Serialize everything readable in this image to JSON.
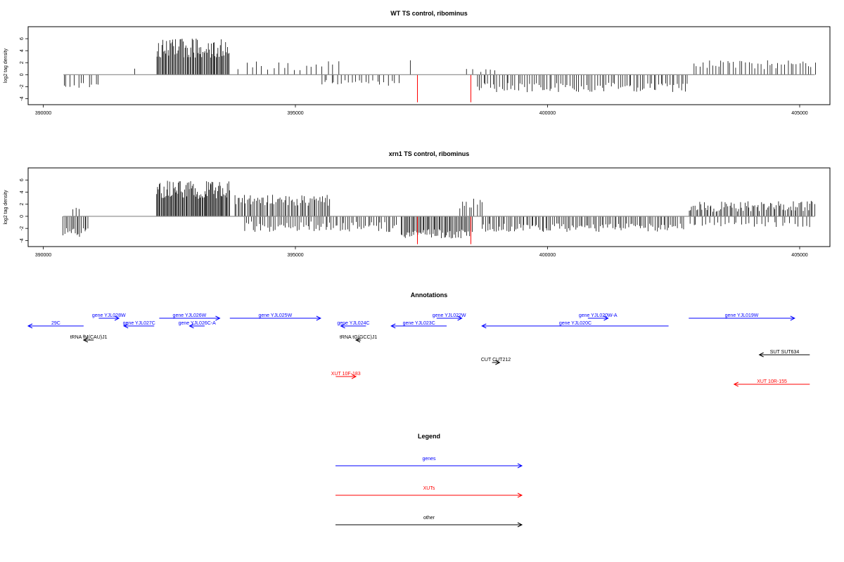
{
  "chart_data": [
    {
      "type": "bar",
      "title": "WT TS control, ribominus",
      "ylabel": "log2 tag density",
      "xlabel": "",
      "xlim": [
        389700,
        405600
      ],
      "ylim": [
        -5,
        8
      ],
      "xticks": [
        390000,
        395000,
        400000,
        405000
      ],
      "yticks": [
        -4,
        -2,
        0,
        2,
        4,
        6
      ],
      "baseline_range": [
        390400,
        405300
      ],
      "pos_regions": [
        {
          "start": 391800,
          "end": 391800,
          "step": 100,
          "base": 1.0,
          "amp": 0,
          "seed": 1
        },
        {
          "start": 392250,
          "end": 393700,
          "step": 20,
          "base": 3.8,
          "amp": 3.2,
          "seed": 2
        },
        {
          "start": 393900,
          "end": 395900,
          "step": 110,
          "base": 1.2,
          "amp": 1.5,
          "seed": 3
        },
        {
          "start": 397300,
          "end": 397300,
          "step": 100,
          "base": 2.4,
          "amp": 0,
          "seed": 4
        },
        {
          "start": 398400,
          "end": 399100,
          "step": 120,
          "base": 0.6,
          "amp": 0.6,
          "seed": 5
        },
        {
          "start": 402900,
          "end": 405300,
          "step": 60,
          "base": 1.4,
          "amp": 1.6,
          "seed": 6
        }
      ],
      "neg_regions": [
        {
          "start": 390400,
          "end": 391100,
          "step": 70,
          "base": -1.4,
          "amp": 1.2,
          "seed": 7
        },
        {
          "start": 395500,
          "end": 397100,
          "step": 70,
          "base": -1.2,
          "amp": 1.0,
          "seed": 8
        },
        {
          "start": 398600,
          "end": 402800,
          "step": 45,
          "base": -1.8,
          "amp": 1.6,
          "seed": 9
        }
      ],
      "red_marks": [
        {
          "x": 397420,
          "y": -4.6
        },
        {
          "x": 398480,
          "y": -4.6
        }
      ]
    },
    {
      "type": "bar",
      "title": "xrn1 TS control, ribominus",
      "ylabel": "log2 tag density",
      "xlabel": "",
      "xlim": [
        389700,
        405600
      ],
      "ylim": [
        -5,
        8
      ],
      "xticks": [
        390000,
        395000,
        400000,
        405000
      ],
      "yticks": [
        -4,
        -2,
        0,
        2,
        4,
        6
      ],
      "baseline_range": [
        390400,
        405300
      ],
      "pos_regions": [
        {
          "start": 390600,
          "end": 390700,
          "step": 50,
          "base": 1.2,
          "amp": 0.4,
          "seed": 11
        },
        {
          "start": 392250,
          "end": 393700,
          "step": 18,
          "base": 3.8,
          "amp": 3.0,
          "seed": 12
        },
        {
          "start": 393800,
          "end": 395700,
          "step": 30,
          "base": 2.3,
          "amp": 1.8,
          "seed": 13
        },
        {
          "start": 398250,
          "end": 398700,
          "step": 50,
          "base": 1.8,
          "amp": 1.8,
          "seed": 14
        },
        {
          "start": 402800,
          "end": 405300,
          "step": 30,
          "base": 1.3,
          "amp": 1.8,
          "seed": 15
        }
      ],
      "neg_regions": [
        {
          "start": 390400,
          "end": 390900,
          "step": 30,
          "base": -2.4,
          "amp": 1.5,
          "seed": 16
        },
        {
          "start": 394000,
          "end": 397000,
          "step": 40,
          "base": -1.4,
          "amp": 1.8,
          "seed": 17
        },
        {
          "start": 397100,
          "end": 398500,
          "step": 25,
          "base": -2.6,
          "amp": 1.6,
          "seed": 18
        },
        {
          "start": 398700,
          "end": 402700,
          "step": 35,
          "base": -1.6,
          "amp": 1.4,
          "seed": 19
        },
        {
          "start": 402800,
          "end": 405200,
          "step": 80,
          "base": -1.2,
          "amp": 0.8,
          "seed": 20
        }
      ],
      "red_marks": [
        {
          "x": 397420,
          "y": -4.6
        },
        {
          "x": 398480,
          "y": -4.6
        }
      ]
    }
  ],
  "annotations": {
    "title": "Annotations",
    "xlim": [
      389700,
      405600
    ],
    "features": [
      {
        "label": "29C",
        "start": 389700,
        "end": 390800,
        "row": 1,
        "strand": "-",
        "kind": "gene"
      },
      {
        "label": "gene YJL028W",
        "start": 391100,
        "end": 391500,
        "row": 0,
        "strand": "+",
        "kind": "gene"
      },
      {
        "label": "gene YJL027C",
        "start": 391600,
        "end": 392200,
        "row": 1,
        "strand": "-",
        "kind": "gene"
      },
      {
        "label": "gene YJL026W",
        "start": 392300,
        "end": 393500,
        "row": 0,
        "strand": "+",
        "kind": "gene"
      },
      {
        "label": "gene YJL026C-A",
        "start": 392900,
        "end": 393200,
        "row": 1,
        "strand": "-",
        "kind": "gene"
      },
      {
        "label": "gene YJL025W",
        "start": 393700,
        "end": 395500,
        "row": 0,
        "strand": "+",
        "kind": "gene"
      },
      {
        "label": "gene YJL024C",
        "start": 395900,
        "end": 396400,
        "row": 1,
        "strand": "-",
        "kind": "gene"
      },
      {
        "label": "gene YJL023C",
        "start": 396900,
        "end": 398000,
        "row": 1,
        "strand": "-",
        "kind": "gene"
      },
      {
        "label": "gene YJL022W",
        "start": 397800,
        "end": 398300,
        "row": 0,
        "strand": "+",
        "kind": "gene"
      },
      {
        "label": "gene YJL020W-A",
        "start": 400800,
        "end": 401200,
        "row": 0,
        "strand": "+",
        "kind": "gene"
      },
      {
        "label": "gene YJL020C",
        "start": 398700,
        "end": 402400,
        "row": 1,
        "strand": "-",
        "kind": "gene"
      },
      {
        "label": "gene YJL019W",
        "start": 402800,
        "end": 404900,
        "row": 0,
        "strand": "+",
        "kind": "gene"
      },
      {
        "label": "tRNA fM(CAU)J1",
        "start": 390800,
        "end": 391000,
        "row": 2,
        "strand": "-",
        "kind": "other"
      },
      {
        "label": "tRNA tG(GCC)J1",
        "start": 396200,
        "end": 396300,
        "row": 2,
        "strand": "-",
        "kind": "other"
      },
      {
        "label": "SUT SUT634",
        "start": 404200,
        "end": 405200,
        "row": 3,
        "strand": "-",
        "kind": "other"
      },
      {
        "label": "CUT CUT212",
        "start": 398900,
        "end": 399050,
        "row": 4,
        "strand": "+",
        "kind": "other"
      },
      {
        "label": "XUT 10F-183",
        "start": 395800,
        "end": 396200,
        "row": 5,
        "strand": "+",
        "kind": "xut"
      },
      {
        "label": "XUT 10R-155",
        "start": 403700,
        "end": 405200,
        "row": 6,
        "strand": "-",
        "kind": "xut"
      }
    ]
  },
  "legend": {
    "title": "Legend",
    "items": [
      {
        "label": "genes",
        "color": "#0000ff"
      },
      {
        "label": "XUTs",
        "color": "#ff0000"
      },
      {
        "label": "other",
        "color": "#000000"
      }
    ]
  },
  "colors": {
    "gene": "#0000ff",
    "xut": "#ff0000",
    "other": "#000000",
    "axis": "#000000",
    "baseline": "#888888",
    "red_mark": "#ff0000"
  }
}
